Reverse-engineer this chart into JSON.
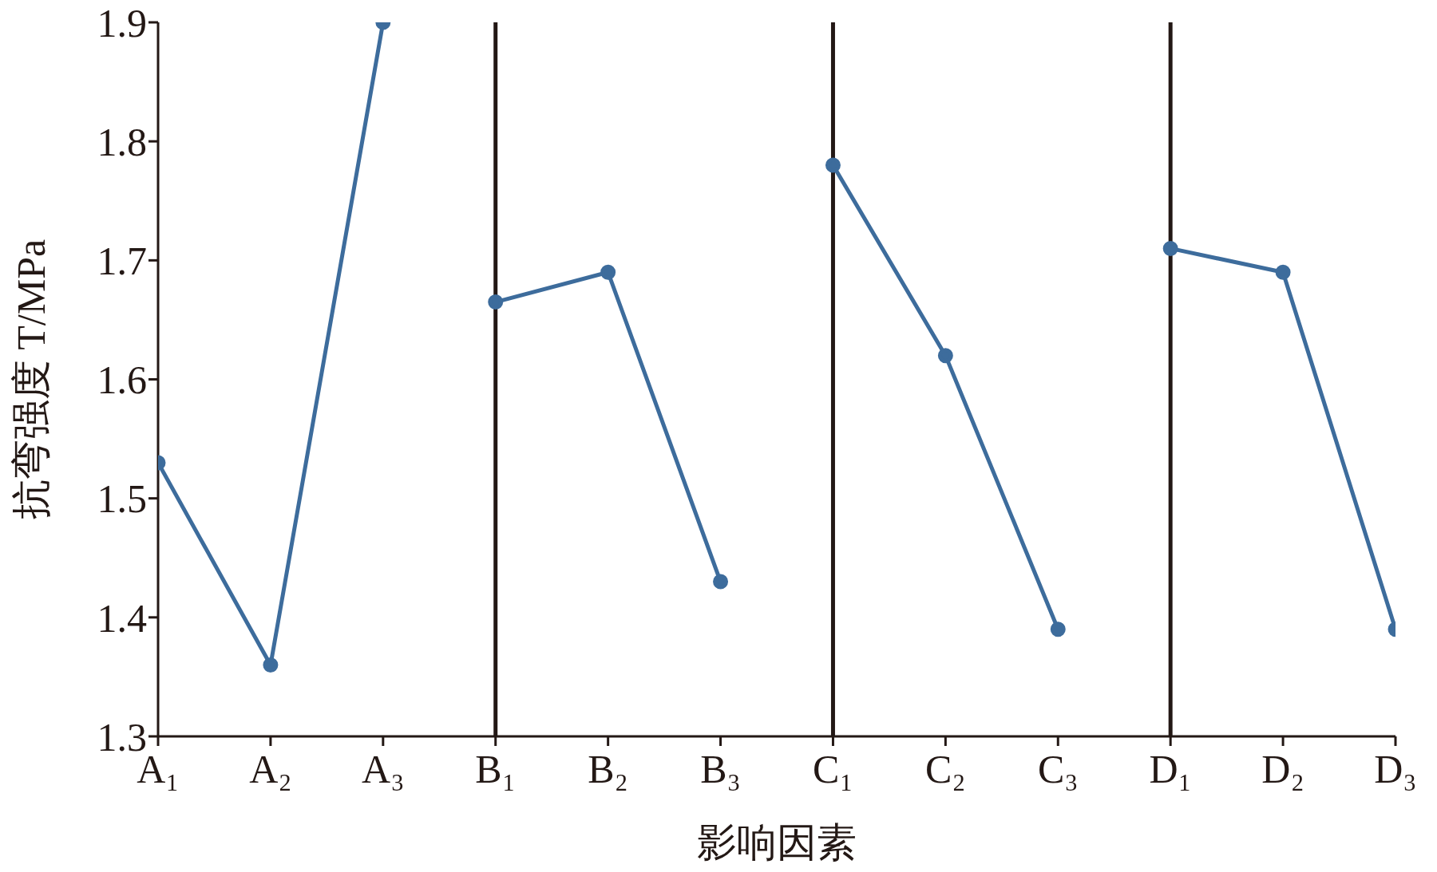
{
  "chart_data": {
    "type": "line",
    "xlabel": "影响因素",
    "ylabel": "抗弯强度 T/MPa",
    "categories": [
      "A₁",
      "A₂",
      "A₃",
      "B₁",
      "B₂",
      "B₃",
      "C₁",
      "C₂",
      "C₃",
      "D₁",
      "D₂",
      "D₃"
    ],
    "series": [
      {
        "color": "#3d6c9c",
        "values": [
          1.53,
          1.36,
          1.9,
          null,
          null,
          null,
          null,
          null,
          null,
          null,
          null,
          null
        ]
      },
      {
        "color": "#3d6c9c",
        "values": [
          null,
          null,
          null,
          1.665,
          1.69,
          1.43,
          null,
          null,
          null,
          null,
          null,
          null
        ]
      },
      {
        "color": "#3d6c9c",
        "values": [
          null,
          null,
          null,
          null,
          null,
          null,
          1.78,
          1.62,
          1.39,
          null,
          null,
          null
        ]
      },
      {
        "color": "#3d6c9c",
        "values": [
          null,
          null,
          null,
          null,
          null,
          null,
          null,
          null,
          null,
          1.71,
          1.69,
          1.39
        ]
      }
    ],
    "ylim": [
      1.3,
      1.9
    ],
    "yticks": [
      1.3,
      1.4,
      1.5,
      1.6,
      1.7,
      1.8,
      1.9
    ],
    "ref_lines": [
      {
        "axis": "x",
        "value": "B₁",
        "color": "#231815"
      },
      {
        "axis": "x",
        "value": "C₁",
        "color": "#231815"
      },
      {
        "axis": "x",
        "value": "D₁",
        "color": "#231815"
      }
    ],
    "grid": false,
    "legend": false,
    "marker": "circle",
    "line_style": "solid"
  }
}
